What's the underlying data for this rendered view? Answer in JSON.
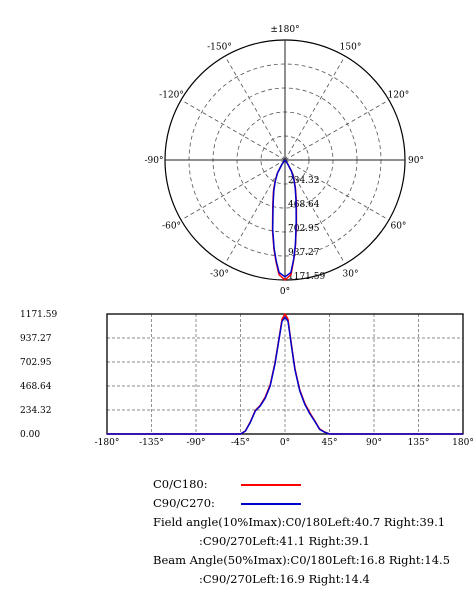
{
  "chart_data": [
    {
      "type": "polar",
      "angle_labels": [
        {
          "angle": 180,
          "text": "±180°"
        },
        {
          "angle": 150,
          "text": "150°"
        },
        {
          "angle": -150,
          "text": "-150°"
        },
        {
          "angle": 120,
          "text": "120°"
        },
        {
          "angle": -120,
          "text": "-120°"
        },
        {
          "angle": 90,
          "text": "90°"
        },
        {
          "angle": -90,
          "text": "-90°"
        },
        {
          "angle": 60,
          "text": "60°"
        },
        {
          "angle": -60,
          "text": "-60°"
        },
        {
          "angle": 30,
          "text": "30°"
        },
        {
          "angle": -30,
          "text": "-30°"
        },
        {
          "angle": 0,
          "text": "0°"
        }
      ],
      "radial_ticks": [
        234.32,
        468.64,
        702.95,
        937.27,
        1171.59
      ],
      "radial_labels": [
        "234.32",
        "468.64",
        "702.95",
        "937.27",
        "1171.59"
      ],
      "rmax": 1171.59,
      "series": [
        {
          "label": "C0/C180",
          "color": "#ff0000",
          "angles": [
            -40,
            -35,
            -30,
            -25,
            -20,
            -15,
            -10,
            -7,
            -5,
            -3,
            0,
            3,
            5,
            7,
            10,
            15,
            20,
            25,
            30,
            35,
            40
          ],
          "values": [
            0,
            60,
            150,
            230,
            330,
            460,
            700,
            880,
            1000,
            1120,
            1171.59,
            1120,
            980,
            840,
            640,
            430,
            300,
            210,
            130,
            50,
            0
          ]
        },
        {
          "label": "C90/C270",
          "color": "#0000cc",
          "angles": [
            -40,
            -35,
            -30,
            -25,
            -20,
            -15,
            -10,
            -7,
            -5,
            -3,
            0,
            3,
            5,
            7,
            10,
            15,
            20,
            25,
            30,
            35,
            40
          ],
          "values": [
            0,
            55,
            145,
            225,
            320,
            450,
            690,
            870,
            990,
            1100,
            1140,
            1100,
            970,
            830,
            630,
            420,
            290,
            200,
            125,
            45,
            0
          ]
        }
      ]
    },
    {
      "type": "line",
      "x_ticks": [
        -180,
        -135,
        -90,
        -45,
        0,
        45,
        90,
        135,
        180
      ],
      "x_tick_labels": [
        "-180°",
        "-135°",
        "-90°",
        "-45°",
        "0°",
        "45°",
        "90°",
        "135°",
        "180°"
      ],
      "y_ticks": [
        0,
        234.32,
        468.64,
        702.95,
        937.27,
        1171.59
      ],
      "y_tick_labels": [
        "0.00",
        "234.32",
        "468.64",
        "702.95",
        "937.27",
        "1171.59"
      ],
      "xlim": [
        -180,
        180
      ],
      "ylim": [
        0,
        1171.59
      ],
      "grid": true,
      "series": [
        {
          "label": "C0/C180",
          "color": "#ff0000",
          "x": [
            -180,
            -45,
            -40,
            -35,
            -30,
            -25,
            -20,
            -15,
            -10,
            -7,
            -5,
            -3,
            0,
            3,
            5,
            7,
            10,
            15,
            20,
            25,
            30,
            35,
            40,
            45,
            180
          ],
          "y": [
            0,
            0,
            30,
            120,
            230,
            280,
            360,
            480,
            700,
            880,
            1000,
            1120,
            1171.59,
            1120,
            980,
            840,
            640,
            430,
            300,
            210,
            130,
            50,
            20,
            0,
            0
          ]
        },
        {
          "label": "C90/C270",
          "color": "#0000cc",
          "x": [
            -180,
            -45,
            -40,
            -35,
            -30,
            -25,
            -20,
            -15,
            -10,
            -7,
            -5,
            -3,
            0,
            3,
            5,
            7,
            10,
            15,
            20,
            25,
            30,
            35,
            40,
            45,
            180
          ],
          "y": [
            0,
            0,
            28,
            115,
            225,
            275,
            350,
            470,
            690,
            870,
            990,
            1100,
            1140,
            1100,
            970,
            830,
            630,
            420,
            290,
            200,
            125,
            45,
            18,
            0,
            0
          ]
        }
      ]
    }
  ],
  "legend": {
    "items": [
      {
        "label": "C0/C180:",
        "color": "#ff0000"
      },
      {
        "label": "C90/C270:",
        "color": "#0000cc"
      }
    ],
    "lines": [
      "Field angle(10%Imax):C0/180Left:40.7 Right:39.1",
      ":C90/270Left:41.1 Right:39.1",
      "Beam Angle(50%Imax):C0/180Left:16.8 Right:14.5",
      ":C90/270Left:16.9 Right:14.4"
    ]
  }
}
